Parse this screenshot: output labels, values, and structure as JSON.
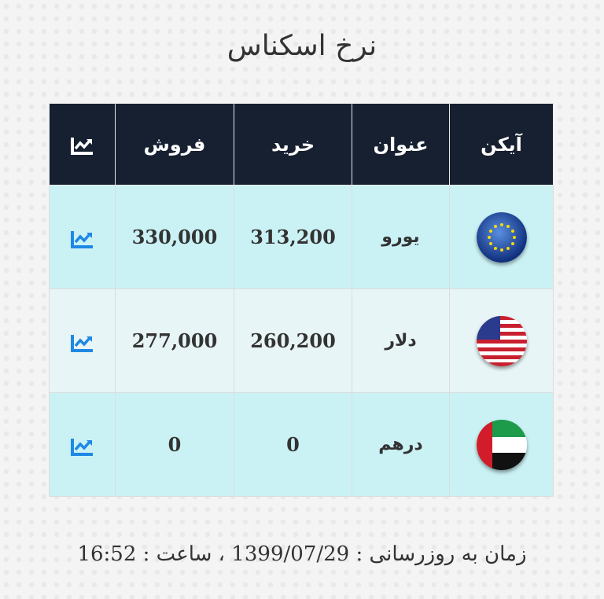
{
  "title": "نرخ اسکناس",
  "table": {
    "headers": {
      "icon": "آیکن",
      "name": "عنوان",
      "buy": "خرید",
      "sell": "فروش",
      "chart": "chart-icon"
    },
    "rows": [
      {
        "flag": "eu-flag-icon",
        "name": "یورو",
        "buy": "313,200",
        "sell": "330,000"
      },
      {
        "flag": "us-flag-icon",
        "name": "دلار",
        "buy": "260,200",
        "sell": "277,000"
      },
      {
        "flag": "uae-flag-icon",
        "name": "درهم",
        "buy": "0",
        "sell": "0"
      }
    ]
  },
  "footer": "زمان به روزرسانی : 1399/07/29 ، ساعت : 16:52",
  "colors": {
    "header_bg": "#172030",
    "chart_icon": "#1e88e5",
    "row_cyan": "#caf2f5",
    "row_light": "#e8f5f6"
  }
}
